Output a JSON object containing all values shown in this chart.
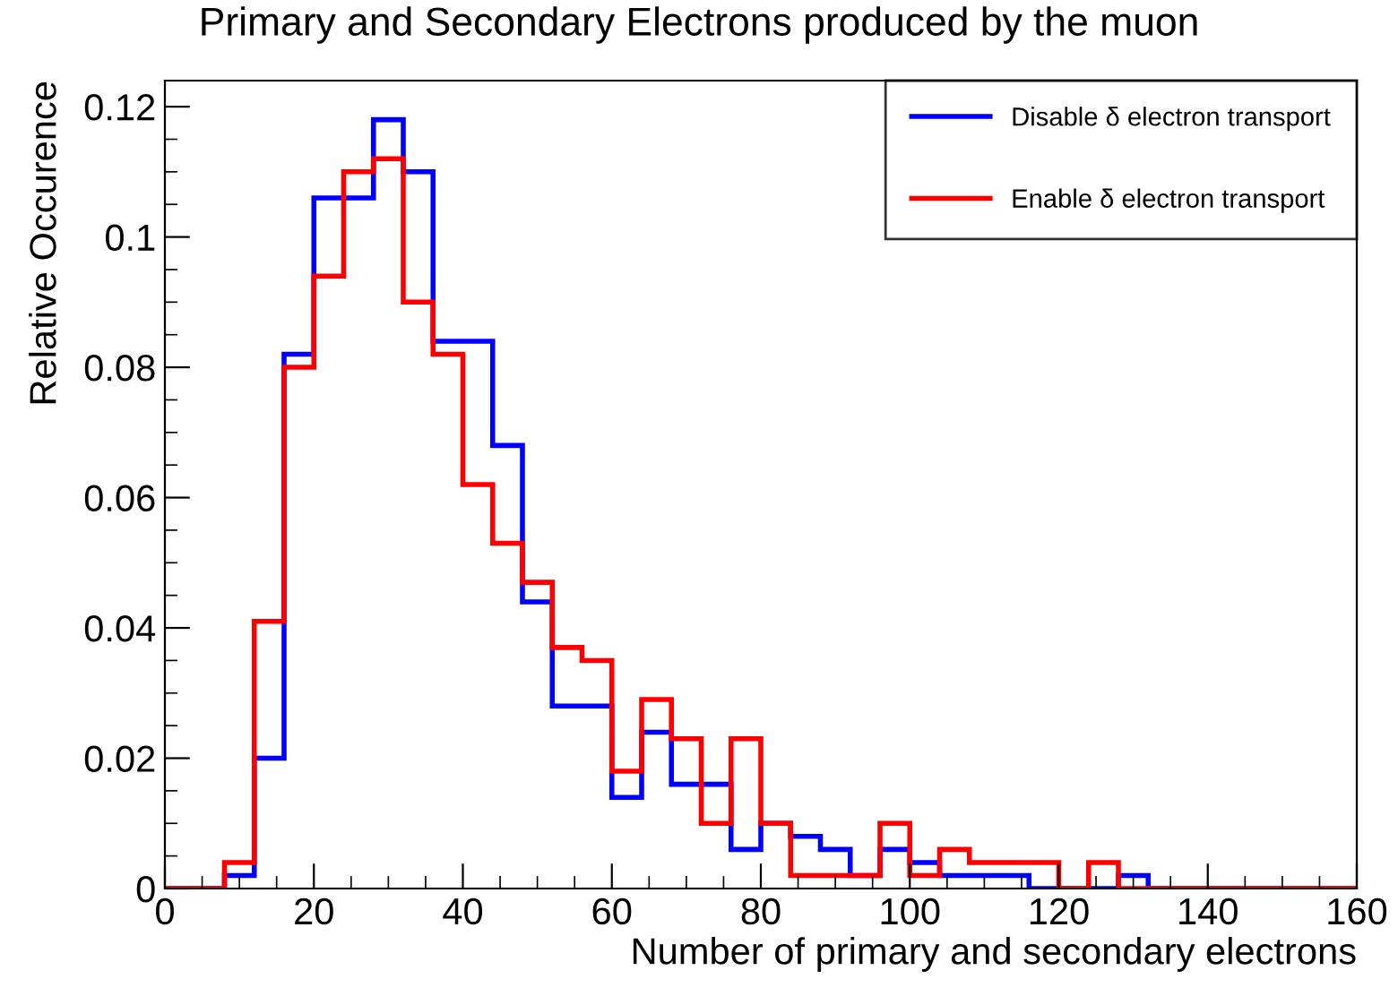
{
  "chart_data": {
    "type": "histogram",
    "title": "Primary and Secondary Electrons produced by the muon",
    "xlabel": "Number of primary and secondary electrons",
    "ylabel": "Relative Occurence",
    "bins": [
      0,
      4,
      8,
      12,
      16,
      20,
      24,
      28,
      32,
      36,
      40,
      44,
      48,
      52,
      56,
      60,
      64,
      68,
      72,
      76,
      80,
      84,
      88,
      92,
      96,
      100,
      104,
      108,
      112,
      116,
      120,
      124,
      128,
      132,
      136,
      140,
      144,
      148,
      152,
      156,
      160
    ],
    "series": [
      {
        "name": "Disable δ electron transport",
        "color": "#0000ff",
        "values": [
          0,
          0,
          0.002,
          0.02,
          0.082,
          0.106,
          0.106,
          0.118,
          0.11,
          0.084,
          0.084,
          0.068,
          0.044,
          0.028,
          0.028,
          0.014,
          0.024,
          0.016,
          0.016,
          0.006,
          0.01,
          0.008,
          0.006,
          0.002,
          0.006,
          0.004,
          0.002,
          0.002,
          0.002,
          0,
          0,
          0,
          0.002,
          0,
          0,
          0,
          0,
          0,
          0,
          0
        ]
      },
      {
        "name": "Enable δ electron transport",
        "color": "#ff0000",
        "values": [
          0,
          0,
          0.004,
          0.041,
          0.08,
          0.094,
          0.11,
          0.112,
          0.09,
          0.082,
          0.062,
          0.053,
          0.047,
          0.037,
          0.035,
          0.018,
          0.029,
          0.023,
          0.01,
          0.023,
          0.01,
          0.002,
          0.002,
          0.002,
          0.01,
          0.002,
          0.006,
          0.004,
          0.004,
          0.004,
          0,
          0.004,
          0,
          0,
          0,
          0,
          0,
          0,
          0,
          0
        ]
      }
    ],
    "xlim": [
      0,
      160
    ],
    "ylim": [
      0,
      0.124
    ],
    "xticks": [
      0,
      20,
      40,
      60,
      80,
      100,
      120,
      140,
      160
    ],
    "yticks": [
      0,
      0.02,
      0.04,
      0.06,
      0.08,
      0.1,
      0.12
    ],
    "grid": false,
    "legend": "top right"
  }
}
